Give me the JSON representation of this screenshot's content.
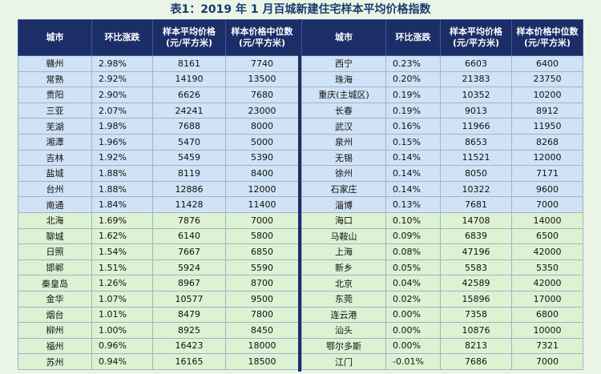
{
  "title": "表1：2019 年 1 月百城新建住宅样本平均价格指数",
  "header": {
    "city": "城市",
    "change": "环比涨跌",
    "avg_line1": "样本平均价格",
    "avg_line2": "(元/平方米)",
    "median_line1": "样本价格中位数",
    "median_line2": "(元/平方米)"
  },
  "left_rows": [
    {
      "city": "赣州",
      "change": "2.98%",
      "avg": "8161",
      "median": "7740"
    },
    {
      "city": "常熟",
      "change": "2.92%",
      "avg": "14190",
      "median": "13500"
    },
    {
      "city": "贵阳",
      "change": "2.90%",
      "avg": "6626",
      "median": "7680"
    },
    {
      "city": "三亚",
      "change": "2.07%",
      "avg": "24241",
      "median": "23000"
    },
    {
      "city": "芜湖",
      "change": "1.98%",
      "avg": "7688",
      "median": "8000"
    },
    {
      "city": "湘潭",
      "change": "1.96%",
      "avg": "5470",
      "median": "5000"
    },
    {
      "city": "吉林",
      "change": "1.92%",
      "avg": "5459",
      "median": "5390"
    },
    {
      "city": "盐城",
      "change": "1.88%",
      "avg": "8119",
      "median": "8400"
    },
    {
      "city": "台州",
      "change": "1.88%",
      "avg": "12886",
      "median": "12000"
    },
    {
      "city": "南通",
      "change": "1.84%",
      "avg": "11428",
      "median": "11400"
    },
    {
      "city": "北海",
      "change": "1.69%",
      "avg": "7876",
      "median": "7000"
    },
    {
      "city": "聊城",
      "change": "1.62%",
      "avg": "6140",
      "median": "5800"
    },
    {
      "city": "日照",
      "change": "1.54%",
      "avg": "7667",
      "median": "6850"
    },
    {
      "city": "邯郸",
      "change": "1.51%",
      "avg": "5924",
      "median": "5590"
    },
    {
      "city": "秦皇岛",
      "change": "1.26%",
      "avg": "8967",
      "median": "8700"
    },
    {
      "city": "金华",
      "change": "1.07%",
      "avg": "10577",
      "median": "9500"
    },
    {
      "city": "烟台",
      "change": "1.01%",
      "avg": "8479",
      "median": "7800"
    },
    {
      "city": "柳州",
      "change": "1.00%",
      "avg": "8925",
      "median": "8450"
    },
    {
      "city": "福州",
      "change": "0.96%",
      "avg": "16423",
      "median": "18000"
    },
    {
      "city": "苏州",
      "change": "0.94%",
      "avg": "16165",
      "median": "18500"
    }
  ],
  "right_rows": [
    {
      "city": "西宁",
      "change": "0.23%",
      "avg": "6603",
      "median": "6400"
    },
    {
      "city": "珠海",
      "change": "0.20%",
      "avg": "21383",
      "median": "23750"
    },
    {
      "city": "重庆(主城区)",
      "change": "0.19%",
      "avg": "10352",
      "median": "10200"
    },
    {
      "city": "长春",
      "change": "0.19%",
      "avg": "9013",
      "median": "8912"
    },
    {
      "city": "武汉",
      "change": "0.16%",
      "avg": "11966",
      "median": "11950"
    },
    {
      "city": "泉州",
      "change": "0.15%",
      "avg": "8653",
      "median": "8268"
    },
    {
      "city": "无锡",
      "change": "0.14%",
      "avg": "11521",
      "median": "12000"
    },
    {
      "city": "徐州",
      "change": "0.14%",
      "avg": "8050",
      "median": "7171"
    },
    {
      "city": "石家庄",
      "change": "0.14%",
      "avg": "10322",
      "median": "9600"
    },
    {
      "city": "淄博",
      "change": "0.13%",
      "avg": "7681",
      "median": "7000"
    },
    {
      "city": "海口",
      "change": "0.10%",
      "avg": "14708",
      "median": "14000"
    },
    {
      "city": "马鞍山",
      "change": "0.09%",
      "avg": "6839",
      "median": "6500"
    },
    {
      "city": "上海",
      "change": "0.08%",
      "avg": "47196",
      "median": "42000"
    },
    {
      "city": "新乡",
      "change": "0.05%",
      "avg": "5583",
      "median": "5350"
    },
    {
      "city": "北京",
      "change": "0.04%",
      "avg": "42589",
      "median": "42000"
    },
    {
      "city": "东莞",
      "change": "0.02%",
      "avg": "15896",
      "median": "17000"
    },
    {
      "city": "连云港",
      "change": "0.00%",
      "avg": "7358",
      "median": "6800"
    },
    {
      "city": "汕头",
      "change": "0.00%",
      "avg": "10876",
      "median": "10000"
    },
    {
      "city": "鄂尔多斯",
      "change": "0.00%",
      "avg": "8213",
      "median": "7321"
    },
    {
      "city": "江门",
      "change": "-0.01%",
      "avg": "7686",
      "median": "7000"
    }
  ]
}
